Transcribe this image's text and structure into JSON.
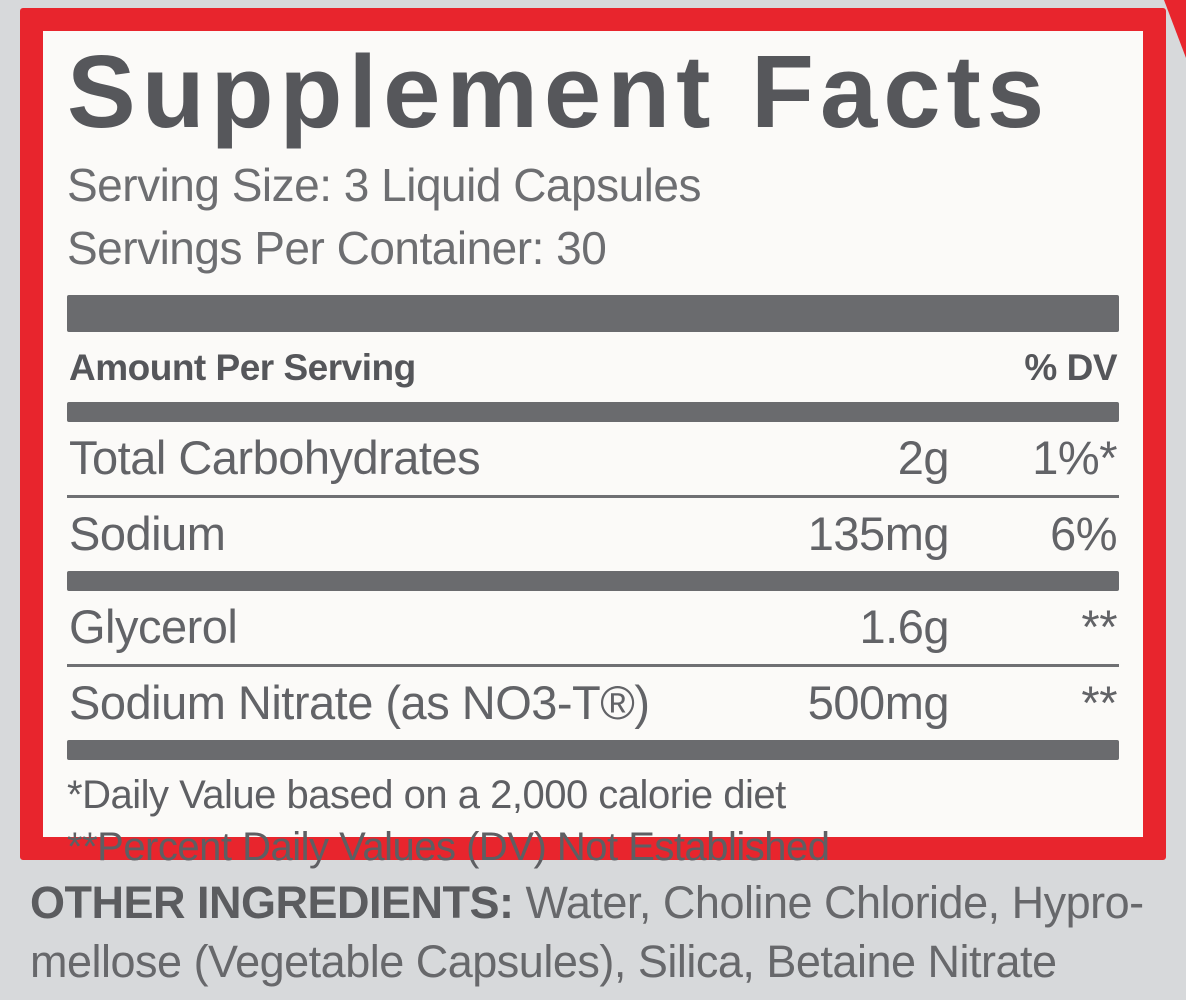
{
  "colors": {
    "accent_red": "#e8252d",
    "bar_gray": "#6a6b6e",
    "text_gray": "#626367",
    "background_gray": "#d7d9db",
    "panel_white": "#fbfaf8"
  },
  "panel": {
    "title": "Supplement Facts",
    "serving_size": "Serving Size: 3 Liquid Capsules",
    "servings_per_container": "Servings Per Container: 30",
    "column_headers": {
      "amount": "Amount Per Serving",
      "dv": "% DV"
    },
    "rows": [
      {
        "name": "Total Carbohydrates",
        "amount": "2g",
        "dv": "1%*"
      },
      {
        "name": "Sodium",
        "amount": "135mg",
        "dv": "6%"
      },
      {
        "name": "Glycerol",
        "amount": "1.6g",
        "dv": "**"
      },
      {
        "name": "Sodium Nitrate (as NO3-T®)",
        "amount": "500mg",
        "dv": "**"
      }
    ],
    "footnotes": [
      "*Daily Value based on a 2,000 calorie diet",
      "**Percent Daily Values (DV) Not Established"
    ]
  },
  "other_ingredients": {
    "label": "OTHER INGREDIENTS:",
    "line1": "Water, Choline Chloride, Hypro-",
    "line2": "mellose (Vegetable Capsules), Silica, Betaine Nitrate"
  }
}
